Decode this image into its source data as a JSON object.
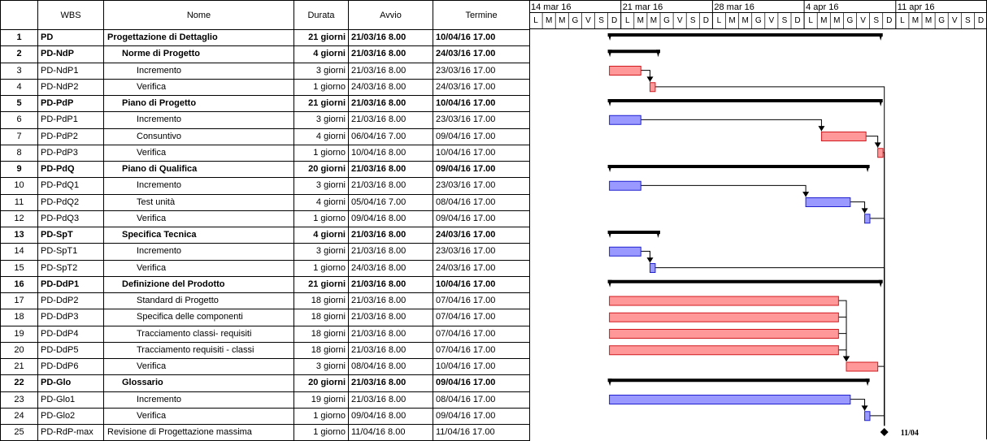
{
  "columns": {
    "num": "",
    "wbs": "WBS",
    "name": "Nome",
    "duration": "Durata",
    "start": "Avvio",
    "end": "Termine"
  },
  "timescale": {
    "weeks": [
      "14 mar 16",
      "21 mar 16",
      "28 mar 16",
      "4 apr 16",
      "11 apr 16"
    ],
    "week_start_day_offsets": [
      -6,
      1,
      8,
      15,
      22
    ],
    "days": [
      "L",
      "M",
      "M",
      "G",
      "V",
      "S",
      "D",
      "L",
      "M",
      "M",
      "G",
      "V",
      "S",
      "D",
      "L",
      "M",
      "M",
      "G",
      "V",
      "S",
      "D",
      "L",
      "M",
      "M",
      "G",
      "V",
      "S",
      "D",
      "L",
      "M",
      "M",
      "G",
      "V",
      "S",
      "D",
      "L",
      "M",
      "M",
      "G",
      "V",
      "S",
      "D"
    ],
    "first_day_offset": -6
  },
  "colors": {
    "summary": "#000000",
    "critical": "#ff9999",
    "critical_border": "#d0191f",
    "normal": "#9999ff",
    "normal_border": "#2020d0",
    "link": "#000000"
  },
  "tasks": [
    {
      "id": "1",
      "wbs": "PD",
      "name": "Progettazione di Dettaglio",
      "duration": "21 giorni",
      "start": "21/03/16 8.00",
      "end": "10/04/16 17.00",
      "summary": true,
      "indent": 0,
      "bar": {
        "type": "summary",
        "start_day": 0.0,
        "end_day": 21.0
      }
    },
    {
      "id": "2",
      "wbs": "PD-NdP",
      "name": "Norme di Progetto",
      "duration": "4 giorni",
      "start": "21/03/16 8.00",
      "end": "24/03/16 17.00",
      "summary": true,
      "indent": 1,
      "bar": {
        "type": "summary",
        "start_day": 0.0,
        "end_day": 4.0
      }
    },
    {
      "id": "3",
      "wbs": "PD-NdP1",
      "name": "Incremento",
      "duration": "3 giorni",
      "start": "21/03/16 8.00",
      "end": "23/03/16 17.00",
      "summary": false,
      "indent": 2,
      "bar": {
        "type": "critical",
        "start_day": 0.0,
        "end_day": 2.4
      }
    },
    {
      "id": "4",
      "wbs": "PD-NdP2",
      "name": "Verifica",
      "duration": "1 giorno",
      "start": "24/03/16 8.00",
      "end": "24/03/16 17.00",
      "summary": false,
      "indent": 2,
      "bar": {
        "type": "critical",
        "start_day": 3.1,
        "end_day": 3.5
      }
    },
    {
      "id": "5",
      "wbs": "PD-PdP",
      "name": "Piano di Progetto",
      "duration": "21 giorni",
      "start": "21/03/16 8.00",
      "end": "10/04/16 17.00",
      "summary": true,
      "indent": 1,
      "bar": {
        "type": "summary",
        "start_day": 0.0,
        "end_day": 21.0
      }
    },
    {
      "id": "6",
      "wbs": "PD-PdP1",
      "name": "Incremento",
      "duration": "3 giorni",
      "start": "21/03/16 8.00",
      "end": "23/03/16 17.00",
      "summary": false,
      "indent": 2,
      "bar": {
        "type": "normal",
        "start_day": 0.0,
        "end_day": 2.4
      }
    },
    {
      "id": "7",
      "wbs": "PD-PdP2",
      "name": "Consuntivo",
      "duration": "4 giorni",
      "start": "06/04/16 7.00",
      "end": "09/04/16 17.00",
      "summary": false,
      "indent": 2,
      "bar": {
        "type": "critical",
        "start_day": 16.2,
        "end_day": 19.6
      }
    },
    {
      "id": "8",
      "wbs": "PD-PdP3",
      "name": "Verifica",
      "duration": "1 giorno",
      "start": "10/04/16 8.00",
      "end": "10/04/16 17.00",
      "summary": false,
      "indent": 2,
      "bar": {
        "type": "critical",
        "start_day": 20.5,
        "end_day": 20.9
      }
    },
    {
      "id": "9",
      "wbs": "PD-PdQ",
      "name": "Piano di Qualifica",
      "duration": "20 giorni",
      "start": "21/03/16 8.00",
      "end": "09/04/16 17.00",
      "summary": true,
      "indent": 1,
      "bar": {
        "type": "summary",
        "start_day": 0.0,
        "end_day": 20.0
      }
    },
    {
      "id": "10",
      "wbs": "PD-PdQ1",
      "name": "Incremento",
      "duration": "3 giorni",
      "start": "21/03/16 8.00",
      "end": "23/03/16 17.00",
      "summary": false,
      "indent": 2,
      "bar": {
        "type": "normal",
        "start_day": 0.0,
        "end_day": 2.4
      }
    },
    {
      "id": "11",
      "wbs": "PD-PdQ2",
      "name": "Test unità",
      "duration": "4 giorni",
      "start": "05/04/16 7.00",
      "end": "08/04/16 17.00",
      "summary": false,
      "indent": 2,
      "bar": {
        "type": "normal",
        "start_day": 15.0,
        "end_day": 18.4
      }
    },
    {
      "id": "12",
      "wbs": "PD-PdQ3",
      "name": "Verifica",
      "duration": "1 giorno",
      "start": "09/04/16 8.00",
      "end": "09/04/16 17.00",
      "summary": false,
      "indent": 2,
      "bar": {
        "type": "normal",
        "start_day": 19.5,
        "end_day": 19.9
      }
    },
    {
      "id": "13",
      "wbs": "PD-SpT",
      "name": "Specifica Tecnica",
      "duration": "4 giorni",
      "start": "21/03/16 8.00",
      "end": "24/03/16 17.00",
      "summary": true,
      "indent": 1,
      "bar": {
        "type": "summary",
        "start_day": 0.0,
        "end_day": 4.0
      }
    },
    {
      "id": "14",
      "wbs": "PD-SpT1",
      "name": "Incremento",
      "duration": "3 giorni",
      "start": "21/03/16 8.00",
      "end": "23/03/16 17.00",
      "summary": false,
      "indent": 2,
      "bar": {
        "type": "normal",
        "start_day": 0.0,
        "end_day": 2.4
      }
    },
    {
      "id": "15",
      "wbs": "PD-SpT2",
      "name": "Verifica",
      "duration": "1 giorno",
      "start": "24/03/16 8.00",
      "end": "24/03/16 17.00",
      "summary": false,
      "indent": 2,
      "bar": {
        "type": "normal",
        "start_day": 3.1,
        "end_day": 3.5
      }
    },
    {
      "id": "16",
      "wbs": "PD-DdP1",
      "name": "Definizione del Prodotto",
      "duration": "21 giorni",
      "start": "21/03/16 8.00",
      "end": "10/04/16 17.00",
      "summary": true,
      "indent": 1,
      "bar": {
        "type": "summary",
        "start_day": 0.0,
        "end_day": 21.0
      }
    },
    {
      "id": "17",
      "wbs": "PD-DdP2",
      "name": "Standard di Progetto",
      "duration": "18 giorni",
      "start": "21/03/16 8.00",
      "end": "07/04/16 17.00",
      "summary": false,
      "indent": 2,
      "bar": {
        "type": "critical",
        "start_day": 0.0,
        "end_day": 17.5
      }
    },
    {
      "id": "18",
      "wbs": "PD-DdP3",
      "name": "Specifica delle componenti",
      "duration": "18 giorni",
      "start": "21/03/16 8.00",
      "end": "07/04/16 17.00",
      "summary": false,
      "indent": 2,
      "bar": {
        "type": "critical",
        "start_day": 0.0,
        "end_day": 17.5
      }
    },
    {
      "id": "19",
      "wbs": "PD-DdP4",
      "name": "Tracciamento classi- requisiti",
      "duration": "18 giorni",
      "start": "21/03/16 8.00",
      "end": "07/04/16 17.00",
      "summary": false,
      "indent": 2,
      "bar": {
        "type": "critical",
        "start_day": 0.0,
        "end_day": 17.5
      }
    },
    {
      "id": "20",
      "wbs": "PD-DdP5",
      "name": "Tracciamento requisiti - classi",
      "duration": "18 giorni",
      "start": "21/03/16 8.00",
      "end": "07/04/16 17.00",
      "summary": false,
      "indent": 2,
      "bar": {
        "type": "critical",
        "start_day": 0.0,
        "end_day": 17.5
      }
    },
    {
      "id": "21",
      "wbs": "PD-DdP6",
      "name": "Verifica",
      "duration": "3 giorni",
      "start": "08/04/16 8.00",
      "end": "10/04/16 17.00",
      "summary": false,
      "indent": 2,
      "bar": {
        "type": "critical",
        "start_day": 18.1,
        "end_day": 20.5
      }
    },
    {
      "id": "22",
      "wbs": "PD-Glo",
      "name": "Glossario",
      "duration": "20 giorni",
      "start": "21/03/16 8.00",
      "end": "09/04/16 17.00",
      "summary": true,
      "indent": 1,
      "bar": {
        "type": "summary",
        "start_day": 0.0,
        "end_day": 20.0
      }
    },
    {
      "id": "23",
      "wbs": "PD-Glo1",
      "name": "Incremento",
      "duration": "19 giorni",
      "start": "21/03/16 8.00",
      "end": "08/04/16 17.00",
      "summary": false,
      "indent": 2,
      "bar": {
        "type": "normal",
        "start_day": 0.0,
        "end_day": 18.4
      }
    },
    {
      "id": "24",
      "wbs": "PD-Glo2",
      "name": "Verifica",
      "duration": "1 giorno",
      "start": "09/04/16 8.00",
      "end": "09/04/16 17.00",
      "summary": false,
      "indent": 2,
      "bar": {
        "type": "normal",
        "start_day": 19.5,
        "end_day": 19.9
      }
    },
    {
      "id": "25",
      "wbs": "PD-RdP-max",
      "name": "Revisione di Progettazione massima",
      "duration": "1 giorno",
      "start": "11/04/16 8.00",
      "end": "11/04/16 17.00",
      "summary": false,
      "indent": 0,
      "bar": {
        "type": "milestone",
        "start_day": 21.0,
        "end_day": 21.0,
        "label": "11/04"
      }
    }
  ],
  "links": [
    {
      "from": "3",
      "to": "4"
    },
    {
      "from": "6",
      "to": "7"
    },
    {
      "from": "7",
      "to": "8"
    },
    {
      "from": "10",
      "to": "11"
    },
    {
      "from": "11",
      "to": "12"
    },
    {
      "from": "14",
      "to": "15"
    },
    {
      "from": "17",
      "to": "21"
    },
    {
      "from": "18",
      "to": "21"
    },
    {
      "from": "19",
      "to": "21"
    },
    {
      "from": "20",
      "to": "21"
    },
    {
      "from": "23",
      "to": "24"
    },
    {
      "from": "4",
      "to": "25"
    },
    {
      "from": "8",
      "to": "25"
    },
    {
      "from": "12",
      "to": "25"
    },
    {
      "from": "15",
      "to": "25"
    },
    {
      "from": "21",
      "to": "25"
    },
    {
      "from": "24",
      "to": "25"
    }
  ]
}
